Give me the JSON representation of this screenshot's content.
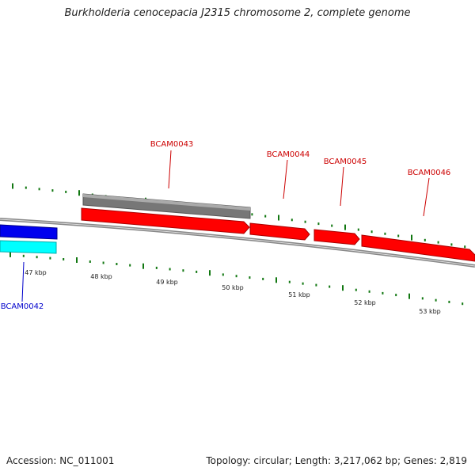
{
  "title": "Burkholderia cenocepacia J2315 chromosome 2, complete genome",
  "footer": {
    "accession": "Accession: NC_011001",
    "summary": "Topology: circular; Length: 3,217,062 bp; Genes: 2,819"
  },
  "colors": {
    "forward_gene": "#ff0000",
    "reverse_gene": "#0000ee",
    "reverse_feature": "#00ffff",
    "forward_feature": "#777777",
    "backbone": "#888888",
    "ticks": "#117711",
    "forward_label": "#cc0000",
    "reverse_label": "#0000cc"
  },
  "gene_labels": {
    "bcam0042": "BCAM0042",
    "bcam0043": "BCAM0043",
    "bcam0044": "BCAM0044",
    "bcam0045": "BCAM0045",
    "bcam0046": "BCAM0046"
  },
  "kbp_labels": [
    "47 kbp",
    "48 kbp",
    "49 kbp",
    "50 kbp",
    "51 kbp",
    "52 kbp",
    "53 kbp"
  ]
}
